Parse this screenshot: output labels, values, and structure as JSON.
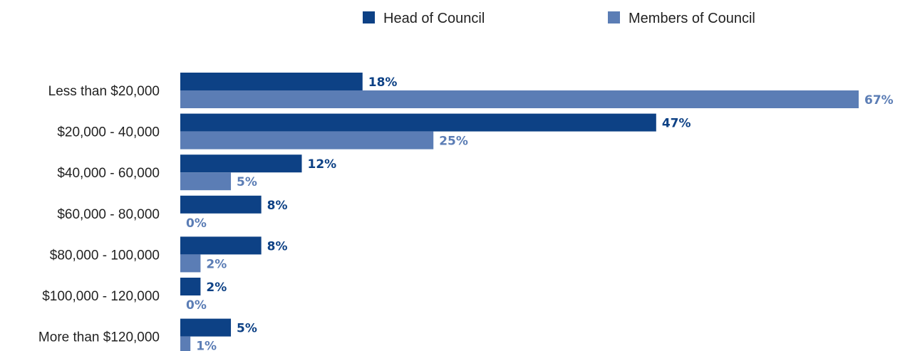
{
  "colors": {
    "head": "#0d4185",
    "members": "#5b7db5"
  },
  "chart_data": {
    "type": "bar",
    "orientation": "horizontal",
    "categories": [
      "Less than $20,000",
      "$20,000 - 40,000",
      "$40,000 - 60,000",
      "$60,000 - 80,000",
      "$80,000 - 100,000",
      "$100,000 - 120,000",
      "More than $120,000"
    ],
    "series": [
      {
        "name": "Head of Council",
        "values": [
          18,
          47,
          12,
          8,
          8,
          2,
          5
        ],
        "labels": [
          "18%",
          "47%",
          "12%",
          "8%",
          "8%",
          "2%",
          "5%"
        ]
      },
      {
        "name": "Members of Council",
        "values": [
          67,
          25,
          5,
          0,
          2,
          0,
          1
        ],
        "labels": [
          "67%",
          "25%",
          "5%",
          "0%",
          "2%",
          "0%",
          "1%"
        ]
      }
    ],
    "xlim": [
      0,
      67
    ],
    "grid": false,
    "legend_position": "top"
  }
}
